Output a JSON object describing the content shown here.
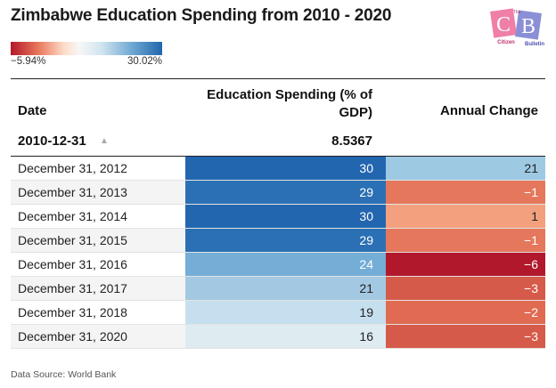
{
  "title": "Zimbabwe Education Spending from 2010 - 2020",
  "legend": {
    "min_label": "−5.94%",
    "max_label": "30.02%"
  },
  "logo": {
    "letters": [
      "C",
      "B"
    ],
    "small_text": [
      "The",
      "Citizen",
      "Bulletin"
    ]
  },
  "chart_data": {
    "type": "table",
    "title": "Zimbabwe Education Spending from 2010 - 2020",
    "columns": [
      "Date",
      "Education Spending (% of GDP)",
      "Annual Change"
    ],
    "color_scale": {
      "min": -5.94,
      "max": 30.02,
      "low_color": "#b2182b",
      "mid_color": "#f7f7f7",
      "high_color": "#2166ac"
    },
    "pinned_row": {
      "date": "2010-12-31",
      "education": "8.5367"
    },
    "rows": [
      {
        "date": "December 31, 2012",
        "education": 30,
        "change": 21,
        "edu_color": "#2366b0",
        "chg_color": "#9ec9e3"
      },
      {
        "date": "December 31, 2013",
        "education": 29,
        "change": -1,
        "edu_color": "#2b70b4",
        "chg_color": "#e5775c"
      },
      {
        "date": "December 31, 2014",
        "education": 30,
        "change": 1,
        "edu_color": "#2366b0",
        "chg_color": "#f3a07f"
      },
      {
        "date": "December 31, 2015",
        "education": 29,
        "change": -1,
        "edu_color": "#2b70b4",
        "chg_color": "#e5775c"
      },
      {
        "date": "December 31, 2016",
        "education": 24,
        "change": -6,
        "edu_color": "#74add5",
        "chg_color": "#b2182b"
      },
      {
        "date": "December 31, 2017",
        "education": 21,
        "change": -3,
        "edu_color": "#a3c9e2",
        "chg_color": "#d65a4a"
      },
      {
        "date": "December 31, 2018",
        "education": 19,
        "change": -2,
        "edu_color": "#c6dfee",
        "chg_color": "#e06b52"
      },
      {
        "date": "December 31, 2020",
        "education": 16,
        "change": -3,
        "edu_color": "#deebf1",
        "chg_color": "#d65a4a"
      }
    ]
  },
  "source": "Data Source: World Bank"
}
